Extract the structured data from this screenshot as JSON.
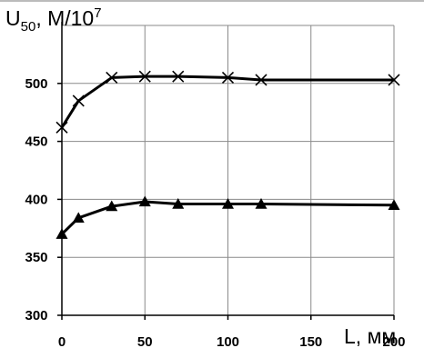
{
  "chart_data": {
    "type": "line",
    "ylabel": {
      "symbol": "U",
      "subscript": "50",
      "rest": ", М/10",
      "superscript": "7"
    },
    "xlabel": "L, мм",
    "xlim": [
      0,
      200
    ],
    "ylim": [
      300,
      550
    ],
    "x_ticks": [
      0,
      50,
      100,
      150,
      200
    ],
    "y_ticks": [
      300,
      350,
      400,
      450,
      500
    ],
    "grid": true,
    "legend": "none",
    "series": [
      {
        "marker": "x",
        "color": "#000000",
        "x": [
          0,
          10,
          30,
          50,
          70,
          100,
          120,
          200
        ],
        "y": [
          462,
          485,
          505,
          506,
          506,
          505,
          503,
          503
        ]
      },
      {
        "marker": "triangle",
        "color": "#000000",
        "x": [
          0,
          10,
          30,
          50,
          70,
          100,
          120,
          200
        ],
        "y": [
          370,
          384,
          394,
          398,
          396,
          396,
          396,
          395
        ]
      }
    ]
  }
}
